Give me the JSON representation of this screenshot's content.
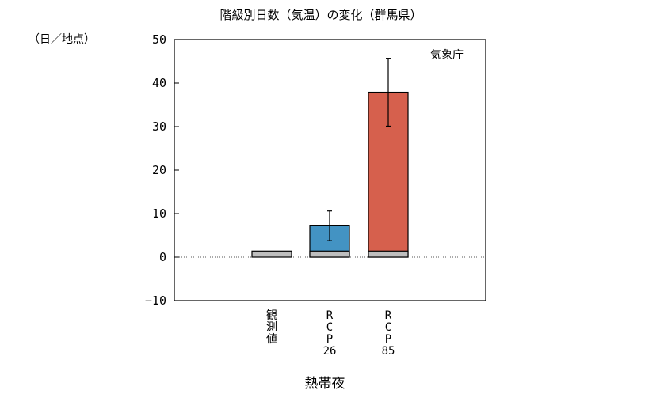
{
  "chart_data": {
    "type": "bar",
    "title": "階級別日数（気温）の変化（群馬県）",
    "ylabel": "（日／地点）",
    "xlabel": "熱帯夜",
    "source": "気象庁",
    "ylim": [
      -10,
      50
    ],
    "yticks": [
      -10,
      0,
      10,
      20,
      30,
      40,
      50
    ],
    "categories": [
      [
        "観",
        "測",
        "値"
      ],
      [
        "R",
        "C",
        "P",
        "26"
      ],
      [
        "R",
        "C",
        "P",
        "85"
      ]
    ],
    "baseline_observed": 1.4,
    "bars": [
      {
        "value": 1.4,
        "color": "#bebebe",
        "error": null
      },
      {
        "value": 7.2,
        "color": "#4393c3",
        "error": [
          3.8,
          10.6
        ]
      },
      {
        "value": 37.9,
        "color": "#d6604d",
        "error": [
          30.1,
          45.7
        ]
      }
    ]
  }
}
